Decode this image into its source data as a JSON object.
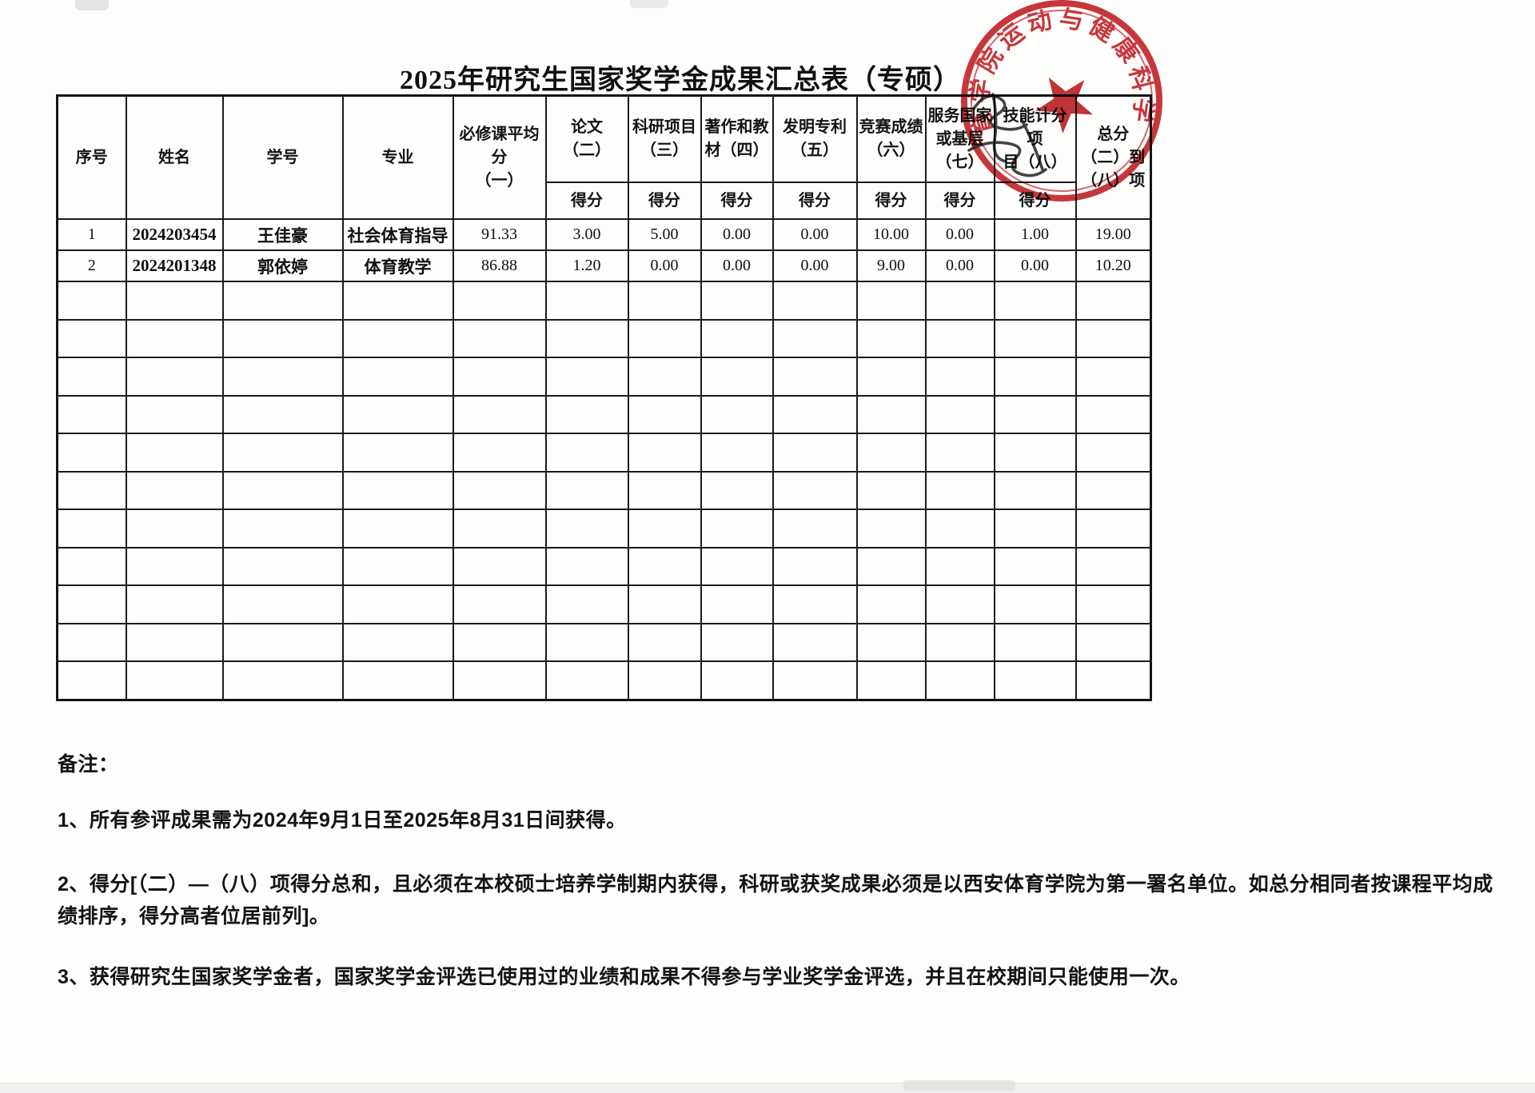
{
  "page": {
    "title": "2025年研究生国家奖学金成果汇总表（专硕）"
  },
  "stamp": {
    "arc_text": "体育学院运动与健康科学",
    "color": "#c4272d"
  },
  "table": {
    "headers": [
      "序号",
      "姓名",
      "学号",
      "专业",
      "必修课平均分\n（一）",
      "论文\n（二）",
      "科研项目\n（三）",
      "著作和教\n材（四）",
      "发明专利\n（五）",
      "竞赛成绩\n（六）",
      "服务国家\n或基层\n（七）",
      "技能计分项\n目（八）",
      "总分\n（二）到\n（八）项"
    ],
    "score_label": "得分",
    "rows": [
      [
        "1",
        "2024203454",
        "王佳豪",
        "社会体育指导",
        "91.33",
        "3.00",
        "5.00",
        "0.00",
        "0.00",
        "10.00",
        "0.00",
        "1.00",
        "19.00"
      ],
      [
        "2",
        "2024201348",
        "郭依婷",
        "体育教学",
        "86.88",
        "1.20",
        "0.00",
        "0.00",
        "0.00",
        "9.00",
        "0.00",
        "0.00",
        "10.20"
      ]
    ],
    "empty_rows": 11
  },
  "notes": {
    "heading": "备注：",
    "items": [
      "1、所有参评成果需为2024年9月1日至2025年8月31日间获得。",
      "2、得分[（二）—（八）项得分总和，且必须在本校硕士培养学制期内获得，科研或获奖成果必须是以西安体育学院为第一署名单位。如总分相同者按课程平均成绩排序，得分高者位居前列]。",
      "3、获得研究生国家奖学金者，国家奖学金评选已使用过的业绩和成果不得参与学业奖学金评选，并且在校期间只能使用一次。"
    ]
  }
}
